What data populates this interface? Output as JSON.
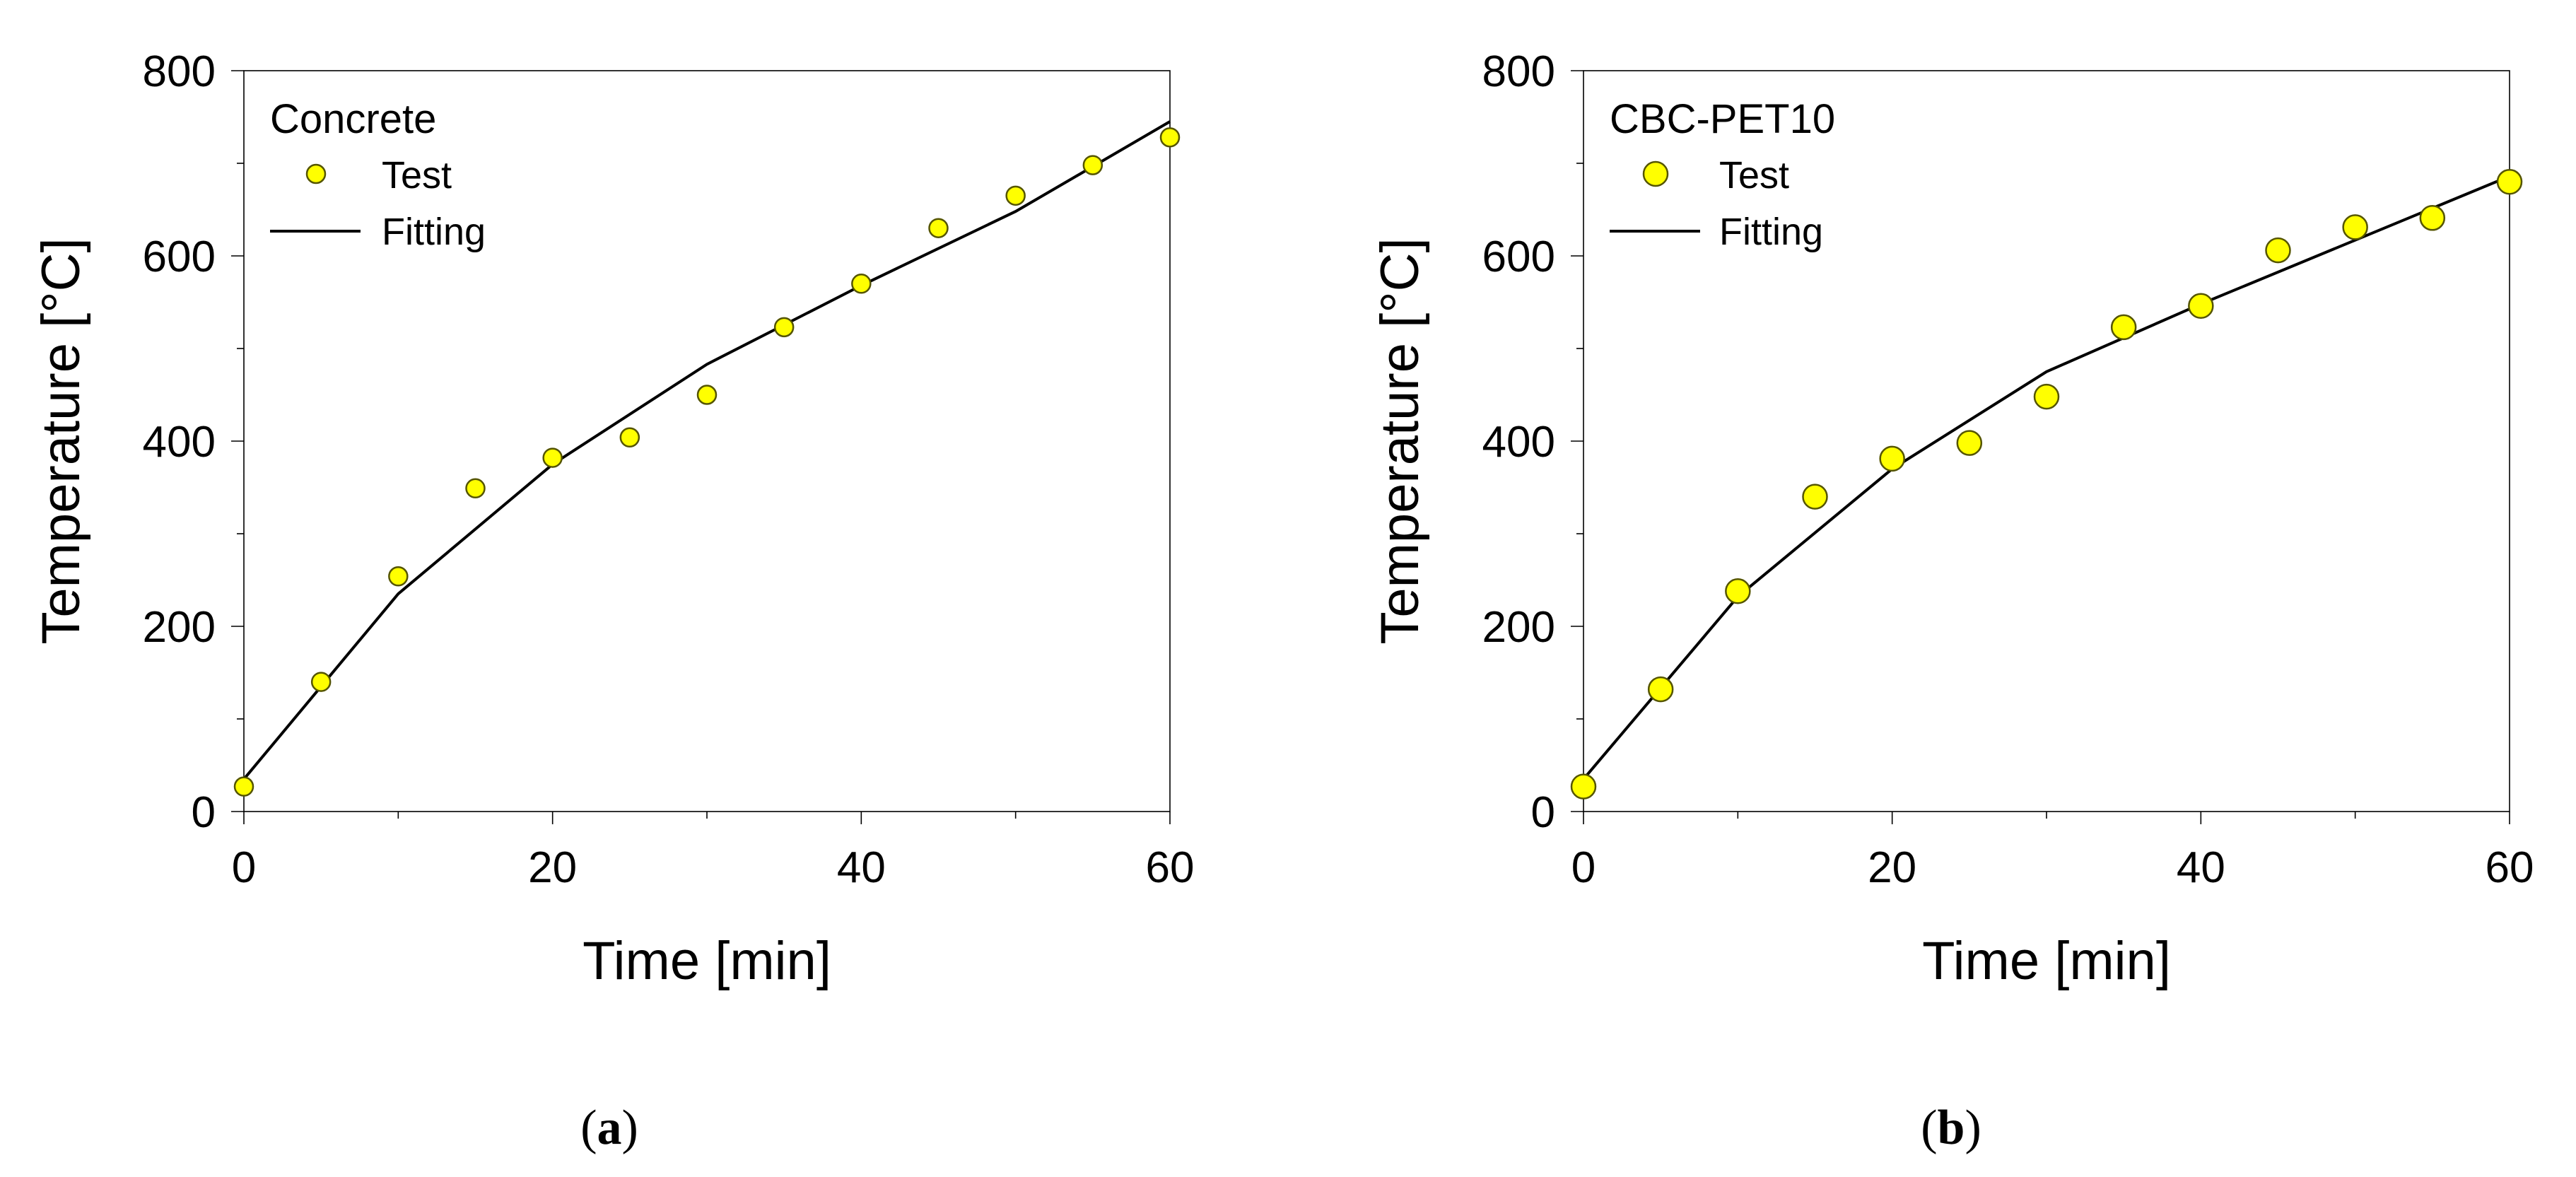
{
  "chart_data": [
    {
      "type": "scatter",
      "panel": "a",
      "caption_open": "(",
      "caption_letter": "a",
      "caption_close": ")",
      "legend_title": "Concrete",
      "xlabel": "Time  [min]",
      "ylabel": "Temperature  [°C]",
      "xlim": [
        0,
        60
      ],
      "ylim": [
        0,
        800
      ],
      "xticks": [
        0,
        20,
        40,
        60
      ],
      "yticks": [
        0,
        200,
        400,
        600,
        800
      ],
      "grid": false,
      "legend_position": "top-left",
      "series": [
        {
          "name": "Test",
          "style": "markers",
          "color": "#ffff00",
          "x": [
            0,
            5,
            10,
            15,
            20,
            25,
            30,
            35,
            40,
            45,
            50,
            55,
            60
          ],
          "y": [
            27,
            140,
            254,
            349,
            382,
            404,
            450,
            523,
            570,
            630,
            665,
            698,
            728
          ]
        },
        {
          "name": "Fitting",
          "style": "line",
          "color": "#000000",
          "x": [
            0,
            10,
            20,
            30,
            40,
            50,
            60
          ],
          "y": [
            35,
            235,
            375,
            483,
            568,
            648,
            745
          ]
        }
      ]
    },
    {
      "type": "scatter",
      "panel": "b",
      "caption_open": "(",
      "caption_letter": "b",
      "caption_close": ")",
      "legend_title": "CBC-PET10",
      "xlabel": "Time  [min]",
      "ylabel": "Temperature  [°C]",
      "xlim": [
        0,
        60
      ],
      "ylim": [
        0,
        800
      ],
      "xticks": [
        0,
        20,
        40,
        60
      ],
      "yticks": [
        0,
        200,
        400,
        600,
        800
      ],
      "grid": false,
      "legend_position": "top-left",
      "series": [
        {
          "name": "Test",
          "style": "markers",
          "color": "#ffff00",
          "x": [
            0,
            5,
            10,
            15,
            20,
            25,
            30,
            35,
            40,
            45,
            50,
            55,
            60
          ],
          "y": [
            27,
            132,
            238,
            340,
            381,
            398,
            448,
            523,
            546,
            606,
            631,
            641,
            680
          ]
        },
        {
          "name": "Fitting",
          "style": "line",
          "color": "#000000",
          "x": [
            0,
            10,
            20,
            30,
            40,
            50,
            60
          ],
          "y": [
            35,
            232,
            370,
            475,
            548,
            617,
            686
          ]
        }
      ]
    }
  ]
}
